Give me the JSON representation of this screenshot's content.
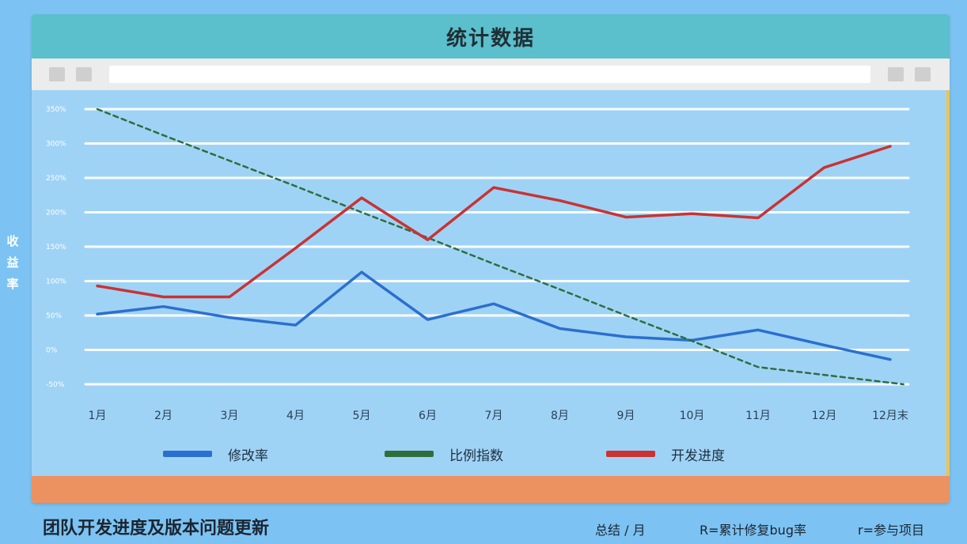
{
  "window": {
    "title": "统计数据"
  },
  "chart_data": {
    "type": "line",
    "ylabel": "收益率",
    "y_ticks": [
      "-50%",
      "0%",
      "50%",
      "100%",
      "150%",
      "200%",
      "250%",
      "300%",
      "350%"
    ],
    "ylim": [
      -50,
      350
    ],
    "categories": [
      "1月",
      "2月",
      "3月",
      "4月",
      "5月",
      "6月",
      "7月",
      "8月",
      "9月",
      "10月",
      "11月",
      "12月",
      "12月末"
    ],
    "grid": true,
    "legend_position": "bottom",
    "series": [
      {
        "name": "修改率",
        "color": "#2b6fcf",
        "style": "solid",
        "values": [
          52,
          63,
          47,
          36,
          113,
          44,
          67,
          31,
          19,
          14,
          29,
          7,
          -14
        ]
      },
      {
        "name": "比例指数",
        "color": "#2e6e3e",
        "style": "dashed",
        "values": [
          350,
          312,
          275,
          238,
          200,
          163,
          125,
          88,
          50,
          13,
          -25,
          -25,
          -50
        ],
        "x_positions": [
          0,
          1,
          2,
          3,
          4,
          5,
          6,
          7,
          8,
          9,
          10,
          null,
          12.2
        ]
      },
      {
        "name": "开发进度",
        "color": "#c93333",
        "style": "solid",
        "values": [
          93,
          77,
          77,
          148,
          221,
          160,
          236,
          217,
          193,
          198,
          192,
          265,
          296
        ]
      }
    ]
  },
  "footer": {
    "title": "团队开发进度及版本问题更新",
    "summary": "总结 / 月",
    "r_upper_note": "R=累计修复bug率",
    "r_lower_note": "r=参与项目"
  }
}
